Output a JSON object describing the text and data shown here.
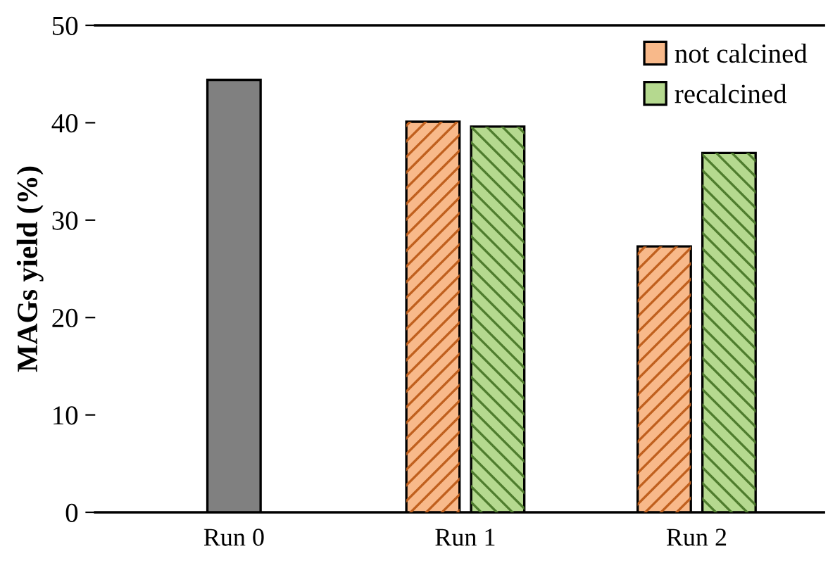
{
  "chart_data": {
    "type": "bar",
    "ylabel": "MAGs yield (%)",
    "categories": [
      "Run 0",
      "Run 1",
      "Run 2"
    ],
    "series": [
      {
        "color": "#808080",
        "values": [
          44.4,
          null,
          null
        ]
      },
      {
        "name": "not calcined",
        "color": "#f8b98a",
        "values": [
          null,
          40.1,
          27.3
        ]
      },
      {
        "name": "recalcined",
        "color": "#b5d98f",
        "values": [
          null,
          39.6,
          36.9
        ]
      }
    ],
    "ylim": [
      0,
      50
    ],
    "yticks": [
      0,
      10,
      20,
      30,
      40,
      50
    ],
    "grid": false,
    "legend": "top right"
  }
}
